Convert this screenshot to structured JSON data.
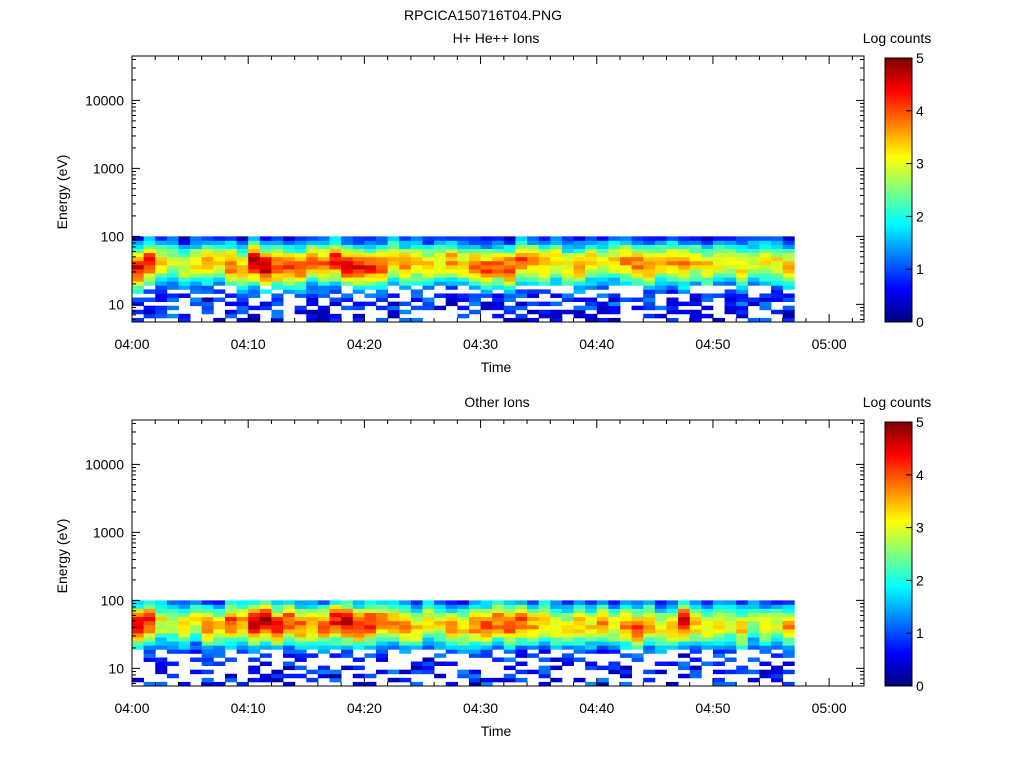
{
  "figure": {
    "title": "RPCICA150716T04.PNG"
  },
  "colorbar": {
    "label": "Log counts",
    "min": 0,
    "max": 5,
    "ticks": [
      "0",
      "1",
      "2",
      "3",
      "4",
      "5"
    ],
    "colormap": [
      "#00007f",
      "#0000ff",
      "#007fff",
      "#00ffff",
      "#7fff7f",
      "#ffff00",
      "#ff7f00",
      "#ff0000",
      "#7f0000"
    ]
  },
  "chart_data": [
    {
      "type": "heatmap",
      "title": "H+ He++ Ions",
      "xlabel": "Time",
      "ylabel": "Energy (eV)",
      "x_range": [
        "04:00",
        "05:03"
      ],
      "y_range": [
        5.5,
        45000
      ],
      "y_scale": "log",
      "x_ticks": [
        "04:00",
        "04:10",
        "04:20",
        "04:30",
        "04:40",
        "04:50",
        "05:00"
      ],
      "y_ticks": [
        "10",
        "100",
        "1000",
        "10000"
      ],
      "data_extent": {
        "time_start": "04:00",
        "time_end": "04:57",
        "energy_min": 5.5,
        "energy_max": 100
      },
      "peak_energy_ev": 40,
      "peak_log_counts": 4.8,
      "intensity_profile": [
        4.5,
        4.3,
        3.3,
        2.9,
        3.1,
        3.2,
        3.6,
        3.3,
        3.9,
        3.6,
        4.7,
        4.6,
        4.1,
        4.0,
        3.9,
        3.7,
        3.8,
        4.3,
        4.4,
        4.3,
        4.2,
        3.9,
        3.7,
        3.8,
        3.5,
        3.4,
        3.3,
        3.6,
        3.4,
        3.9,
        4.0,
        3.8,
        4.1,
        4.0,
        3.7,
        3.6,
        3.4,
        3.2,
        3.5,
        3.3,
        3.0,
        3.2,
        3.6,
        3.8,
        3.7,
        3.4,
        3.6,
        3.8,
        3.3,
        3.4,
        3.2,
        3.1,
        3.3,
        3.0,
        3.2,
        3.1,
        3.4
      ],
      "colorbar_label": "Log counts",
      "colorbar_range": [
        0,
        5
      ]
    },
    {
      "type": "heatmap",
      "title": "Other Ions",
      "xlabel": "Time",
      "ylabel": "Energy (eV)",
      "x_range": [
        "04:00",
        "05:03"
      ],
      "y_range": [
        5.5,
        45000
      ],
      "y_scale": "log",
      "x_ticks": [
        "04:00",
        "04:10",
        "04:20",
        "04:30",
        "04:40",
        "04:50",
        "05:00"
      ],
      "y_ticks": [
        "10",
        "100",
        "1000",
        "10000"
      ],
      "data_extent": {
        "time_start": "04:00",
        "time_end": "04:57",
        "energy_min": 5.5,
        "energy_max": 100
      },
      "peak_energy_ev": 45,
      "peak_log_counts": 4.9,
      "intensity_profile": [
        4.4,
        4.2,
        3.1,
        2.8,
        3.3,
        3.0,
        3.8,
        3.2,
        4.0,
        3.5,
        4.8,
        4.7,
        4.2,
        4.0,
        3.8,
        3.6,
        3.9,
        4.4,
        4.5,
        4.3,
        4.3,
        3.8,
        3.6,
        3.7,
        3.4,
        3.3,
        3.2,
        3.5,
        3.3,
        3.9,
        4.1,
        3.9,
        4.2,
        4.0,
        3.6,
        3.5,
        3.3,
        3.1,
        3.4,
        3.2,
        3.6,
        3.1,
        3.7,
        4.1,
        3.6,
        3.3,
        3.5,
        4.4,
        3.4,
        3.3,
        3.1,
        3.0,
        3.4,
        2.9,
        3.3,
        3.0,
        3.6
      ],
      "colorbar_label": "Log counts",
      "colorbar_range": [
        0,
        5
      ]
    }
  ]
}
